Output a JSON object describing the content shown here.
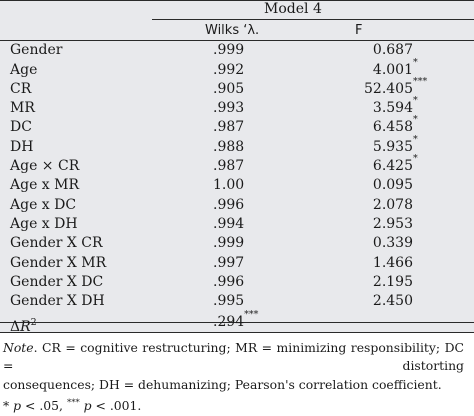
{
  "header": {
    "model_title": "Model 4",
    "col_wilks": "Wilks ‘λ.",
    "col_f": "F"
  },
  "rows": [
    {
      "label": "Gender",
      "wilks": ".999",
      "f": "0.687",
      "sig": ""
    },
    {
      "label": "Age",
      "wilks": ".992",
      "f": "4.001",
      "sig": "*"
    },
    {
      "label": "CR",
      "wilks": ".905",
      "f": "52.405",
      "sig": "***"
    },
    {
      "label": "MR",
      "wilks": ".993",
      "f": "3.594",
      "sig": "*"
    },
    {
      "label": "DC",
      "wilks": ".987",
      "f": "6.458",
      "sig": "*"
    },
    {
      "label": "DH",
      "wilks": ".988",
      "f": "5.935",
      "sig": "*"
    },
    {
      "label": "Age × CR",
      "wilks": ".987",
      "f": "6.425",
      "sig": "*"
    },
    {
      "label": "Age x MR",
      "wilks": "1.00",
      "f": "0.095",
      "sig": ""
    },
    {
      "label": "Age x DC",
      "wilks": ".996",
      "f": "2.078",
      "sig": ""
    },
    {
      "label": "Age x DH",
      "wilks": ".994",
      "f": "2.953",
      "sig": ""
    },
    {
      "label": "Gender X CR",
      "wilks": ".999",
      "f": "0.339",
      "sig": ""
    },
    {
      "label": "Gender X MR",
      "wilks": ".997",
      "f": "1.466",
      "sig": ""
    },
    {
      "label": "Gender X DC",
      "wilks": ".996",
      "f": "2.195",
      "sig": ""
    },
    {
      "label": "Gender X DH",
      "wilks": ".995",
      "f": "2.450",
      "sig": ""
    }
  ],
  "delta_r2": {
    "label_delta": "Δ",
    "label_r": "R",
    "label_sup": "2",
    "value": ".294",
    "sig": "***"
  },
  "note": {
    "note_word": "Note",
    "line1_rest": ". CR = cognitive restructuring; MR = minimizing responsibility; DC = distorting",
    "line2": "consequences; DH = dehumanizing; Pearson's correlation coefficient.",
    "sig_star1": "*",
    "p1": "p",
    "thresh1": " < .05, ",
    "sig_star3": "***",
    "p2": "p",
    "thresh2": " < .001."
  }
}
